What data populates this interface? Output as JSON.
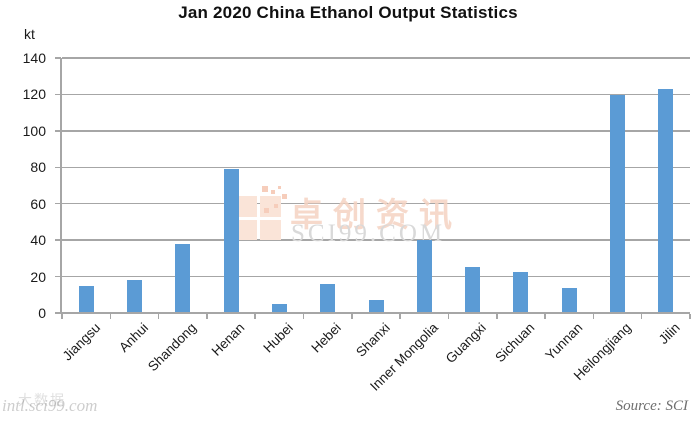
{
  "chart_data": {
    "type": "bar",
    "title": "Jan 2020 China Ethanol Output Statistics",
    "unit_label": "kt",
    "categories": [
      "Jiangsu",
      "Anhui",
      "Shandong",
      "Henan",
      "Hubei",
      "Hebei",
      "Shanxi",
      "Inner Mongolia",
      "Guangxi",
      "Sichuan",
      "Yunnan",
      "Heilongjiang",
      "Jilin"
    ],
    "values": [
      15,
      18,
      38,
      79,
      5,
      16,
      7,
      40,
      25.5,
      22.5,
      13.5,
      119.5,
      123
    ],
    "xlabel": "",
    "ylabel": "kt",
    "ylim": [
      0,
      140
    ],
    "ytick_step": 20,
    "ytick_labels": [
      "0",
      "20",
      "40",
      "60",
      "80",
      "100",
      "120",
      "140"
    ],
    "grid": true,
    "legend_position": "none",
    "bar_color": "#5b9bd5",
    "gridline_color": "#a6a6a6"
  },
  "watermarks": {
    "center_logo_icon": "sci99-pixel-grid-logo",
    "center_line1": "卓创资讯",
    "center_line2": "SCI99.COM",
    "bottom_left_cn": "大数据",
    "bottom_left_url": "intl.sci99.com"
  },
  "footer": {
    "source_note": "Source: SCI"
  }
}
